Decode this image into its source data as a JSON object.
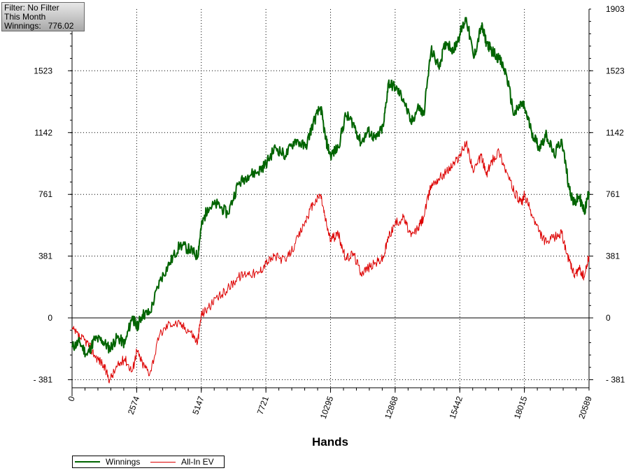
{
  "info_box": {
    "filter": "Filter: No Filter",
    "period": "This Month",
    "winnings_label": "Winnings:",
    "winnings_value": "776.02"
  },
  "legend": {
    "winnings": "Winnings",
    "allin_ev": "All-In EV"
  },
  "colors": {
    "winnings": "#006400",
    "allin_ev": "#dd0000",
    "grid": "#000000"
  },
  "chart_data": {
    "type": "line",
    "xlabel": "Hands",
    "ylabel": "",
    "x_ticks": [
      "0",
      "2574",
      "5147",
      "7721",
      "10295",
      "12868",
      "15442",
      "18015",
      "20589"
    ],
    "y_ticks_left": [
      "- 381",
      "0",
      "381",
      "761",
      "1142",
      "1523"
    ],
    "y_ticks_right": [
      "- 381",
      "0",
      "381",
      "761",
      "1142",
      "1523",
      "1903"
    ],
    "xlim": [
      0,
      20589
    ],
    "ylim": [
      -420,
      1903
    ],
    "grid": true,
    "legend_position": "bottom-left",
    "series": [
      {
        "name": "Winnings",
        "x": [
          0,
          300,
          600,
          900,
          1200,
          1500,
          1800,
          2100,
          2400,
          2574,
          2800,
          3100,
          3500,
          3900,
          4300,
          4700,
          5000,
          5147,
          5400,
          5800,
          6200,
          6600,
          7000,
          7400,
          7721,
          8100,
          8500,
          8900,
          9300,
          9600,
          9900,
          10100,
          10295,
          10600,
          10900,
          11200,
          11500,
          11800,
          12100,
          12400,
          12600,
          12868,
          13200,
          13500,
          13800,
          14000,
          14300,
          14600,
          14900,
          15200,
          15442,
          15700,
          16000,
          16300,
          16500,
          16700,
          17000,
          17300,
          17600,
          17900,
          18015,
          18300,
          18600,
          18900,
          19200,
          19500,
          19800,
          20000,
          20200,
          20400,
          20589
        ],
        "values": [
          -180,
          -150,
          -230,
          -130,
          -140,
          -190,
          -120,
          -160,
          10,
          -60,
          20,
          30,
          230,
          340,
          450,
          420,
          380,
          560,
          680,
          700,
          640,
          820,
          880,
          900,
          950,
          1050,
          1000,
          1100,
          1050,
          1200,
          1300,
          1100,
          1000,
          1050,
          1250,
          1200,
          1080,
          1150,
          1100,
          1180,
          1450,
          1420,
          1350,
          1200,
          1300,
          1250,
          1650,
          1550,
          1700,
          1650,
          1750,
          1850,
          1600,
          1800,
          1700,
          1650,
          1600,
          1500,
          1250,
          1320,
          1300,
          1150,
          1050,
          1130,
          1000,
          1100,
          800,
          700,
          750,
          650,
          776
        ]
      },
      {
        "name": "All-In EV",
        "x": [
          0,
          300,
          600,
          900,
          1200,
          1500,
          1800,
          2100,
          2400,
          2574,
          2800,
          3100,
          3500,
          3900,
          4300,
          4700,
          5000,
          5147,
          5400,
          5800,
          6200,
          6600,
          7000,
          7400,
          7721,
          8100,
          8500,
          8900,
          9300,
          9600,
          9900,
          10100,
          10295,
          10600,
          10900,
          11200,
          11500,
          11800,
          12100,
          12400,
          12600,
          12868,
          13200,
          13500,
          13800,
          14000,
          14300,
          14600,
          14900,
          15200,
          15442,
          15700,
          16000,
          16300,
          16500,
          16700,
          17000,
          17300,
          17600,
          17900,
          18015,
          18300,
          18600,
          18900,
          19200,
          19500,
          19800,
          20000,
          20200,
          20400,
          20589
        ],
        "values": [
          -70,
          -120,
          -150,
          -230,
          -280,
          -380,
          -300,
          -250,
          -330,
          -200,
          -280,
          -340,
          -100,
          -30,
          -40,
          -80,
          -150,
          20,
          60,
          120,
          180,
          250,
          280,
          270,
          340,
          380,
          350,
          460,
          600,
          700,
          760,
          600,
          480,
          520,
          360,
          400,
          280,
          310,
          340,
          370,
          500,
          580,
          620,
          500,
          560,
          620,
          820,
          860,
          900,
          950,
          1000,
          1080,
          900,
          1000,
          880,
          960,
          1030,
          900,
          780,
          700,
          760,
          640,
          530,
          460,
          500,
          520,
          350,
          260,
          300,
          250,
          380
        ]
      }
    ]
  }
}
